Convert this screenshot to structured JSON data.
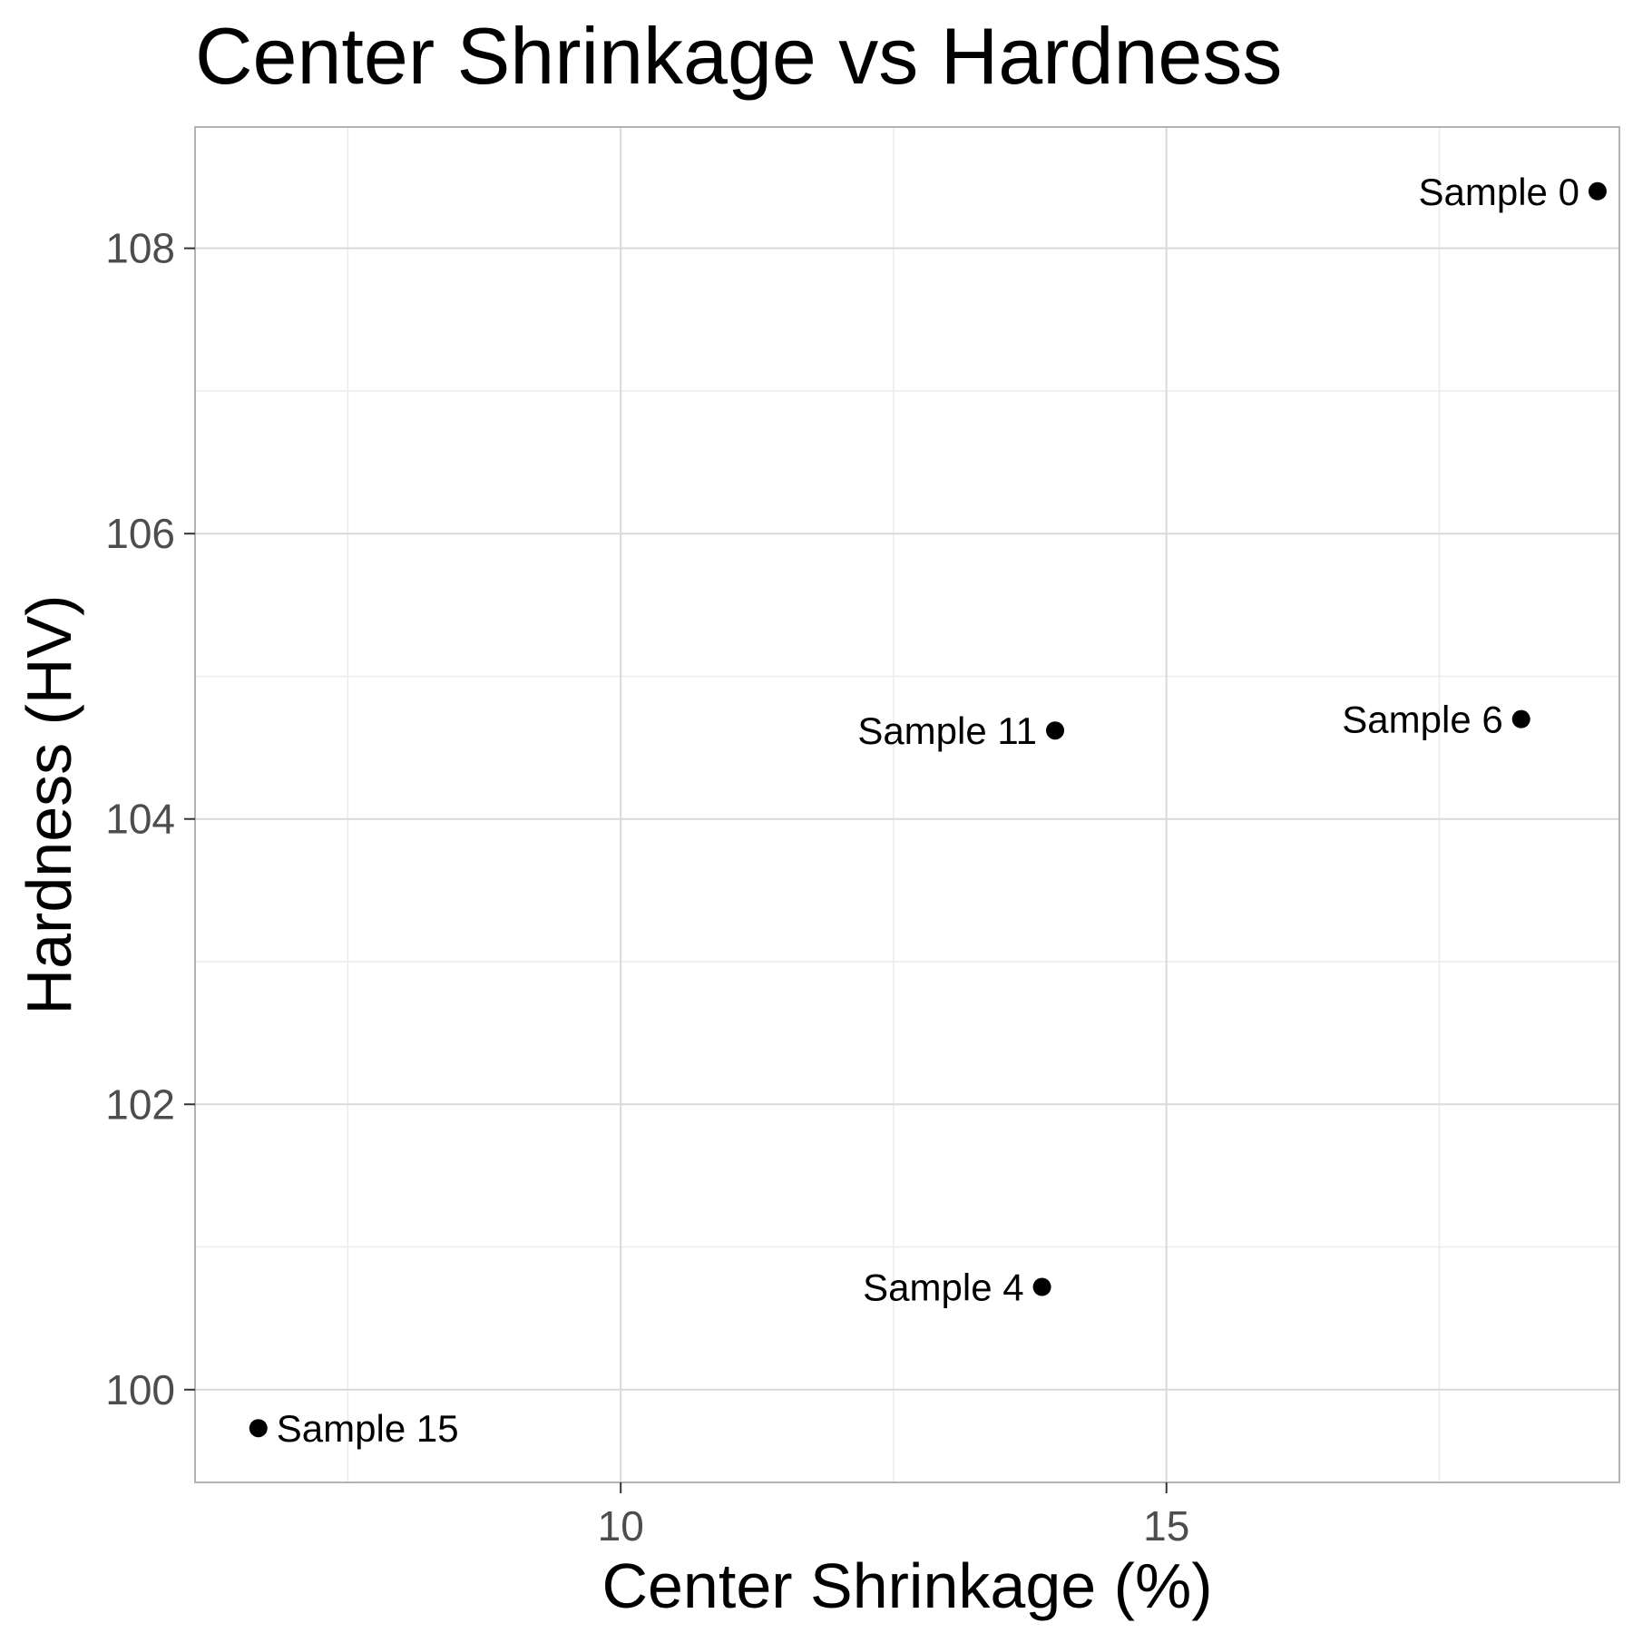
{
  "chart_data": {
    "type": "scatter",
    "title": "Center Shrinkage vs Hardness",
    "xlabel": "Center Shrinkage (%)",
    "ylabel": "Hardness (HV)",
    "xlim": [
      6.1,
      19.15
    ],
    "ylim": [
      99.35,
      108.85
    ],
    "xticks": [
      10,
      15
    ],
    "yticks": [
      100,
      102,
      104,
      106,
      108
    ],
    "x_minor_ticks": [
      7.5,
      12.5,
      17.5
    ],
    "y_minor_ticks": [
      101,
      103,
      105,
      107
    ],
    "grid": true,
    "points": [
      {
        "label": "Sample 0",
        "x": 18.95,
        "y": 108.4
      },
      {
        "label": "Sample 6",
        "x": 18.25,
        "y": 104.7
      },
      {
        "label": "Sample 11",
        "x": 13.98,
        "y": 104.62
      },
      {
        "label": "Sample 4",
        "x": 13.86,
        "y": 100.72
      },
      {
        "label": "Sample 15",
        "x": 6.68,
        "y": 99.73
      }
    ],
    "colors": {
      "point": "#000000",
      "grid_major": "#d9d9d9",
      "grid_minor": "#ebebeb",
      "panel_border": "#b3b3b3",
      "tick_label": "#4d4d4d"
    }
  }
}
